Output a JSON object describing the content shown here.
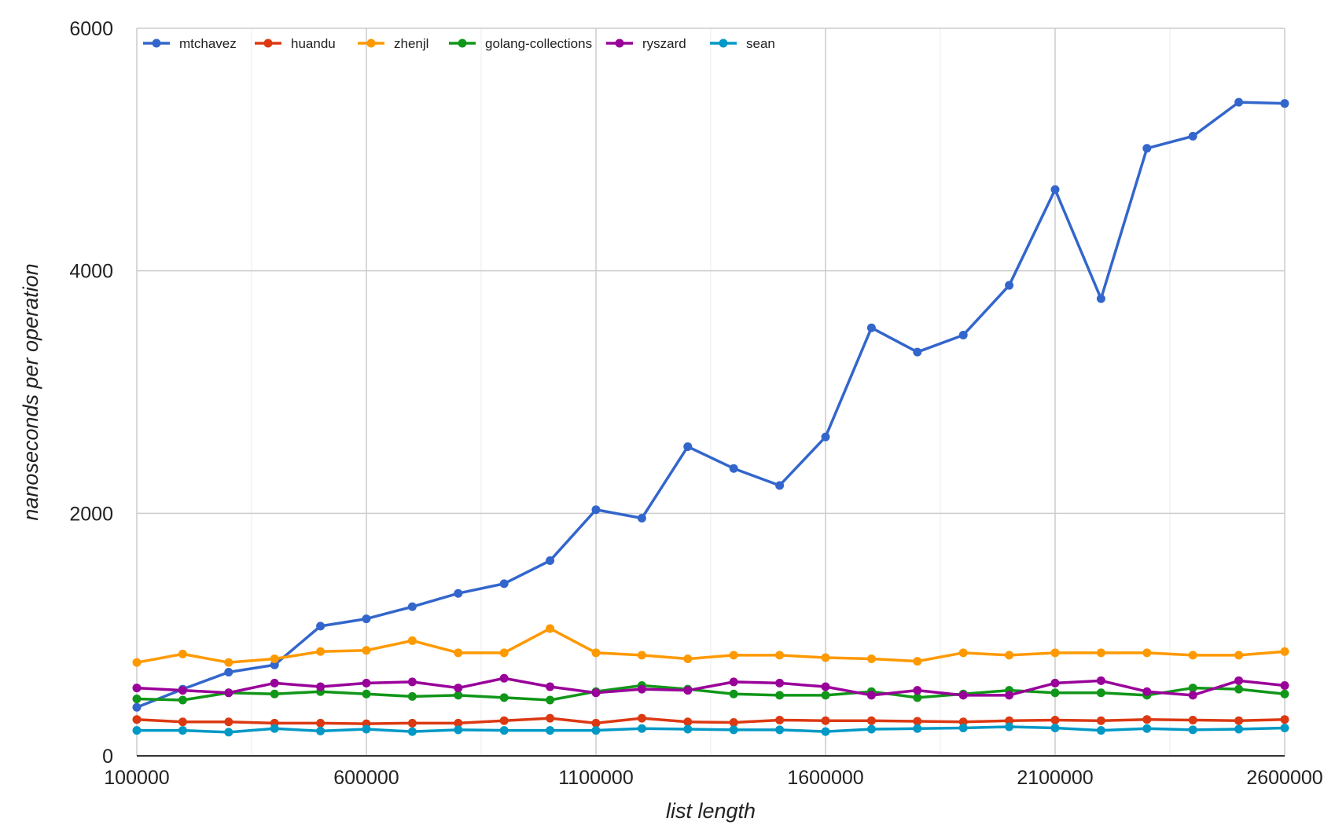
{
  "chart_data": {
    "type": "line",
    "title": "",
    "xlabel": "list length",
    "ylabel": "nanoseconds per operation",
    "xlim": [
      100000,
      2600000
    ],
    "ylim": [
      0,
      6000
    ],
    "xticks": [
      100000,
      600000,
      1100000,
      1600000,
      2100000,
      2600000
    ],
    "xtick_labels": [
      "100000",
      "600000",
      "1100000",
      "1600000",
      "2100000",
      "2600000"
    ],
    "yticks": [
      0,
      2000,
      4000,
      6000
    ],
    "ytick_labels": [
      "0",
      "2000",
      "4000",
      "6000"
    ],
    "grid": true,
    "legend_position": "top",
    "x": [
      100000,
      200000,
      300000,
      400000,
      500000,
      600000,
      700000,
      800000,
      900000,
      1000000,
      1100000,
      1200000,
      1300000,
      1400000,
      1500000,
      1600000,
      1700000,
      1800000,
      1900000,
      2000000,
      2100000,
      2200000,
      2300000,
      2400000,
      2500000,
      2600000
    ],
    "series": [
      {
        "name": "mtchavez",
        "color": "#3366cc",
        "values": [
          400,
          550,
          690,
          750,
          1070,
          1130,
          1230,
          1340,
          1420,
          1610,
          2030,
          1960,
          2550,
          2370,
          2230,
          2630,
          3530,
          3330,
          3470,
          3880,
          4670,
          3770,
          5010,
          5110,
          5390,
          5380
        ]
      },
      {
        "name": "huandu",
        "color": "#dc3912",
        "values": [
          300,
          280,
          280,
          270,
          270,
          265,
          270,
          270,
          290,
          310,
          270,
          310,
          280,
          275,
          295,
          290,
          290,
          285,
          280,
          290,
          295,
          290,
          300,
          295,
          290,
          300
        ]
      },
      {
        "name": "zhenjl",
        "color": "#ff9900",
        "values": [
          770,
          840,
          770,
          800,
          860,
          870,
          950,
          850,
          850,
          1050,
          850,
          830,
          800,
          830,
          830,
          810,
          800,
          780,
          850,
          830,
          850,
          850,
          850,
          830,
          830,
          860
        ]
      },
      {
        "name": "golang-collections",
        "color": "#109618",
        "values": [
          470,
          460,
          520,
          510,
          530,
          510,
          490,
          500,
          480,
          460,
          530,
          580,
          550,
          510,
          500,
          500,
          530,
          480,
          510,
          540,
          520,
          520,
          500,
          560,
          550,
          510
        ]
      },
      {
        "name": "ryszard",
        "color": "#990099",
        "values": [
          560,
          540,
          520,
          600,
          570,
          600,
          610,
          560,
          640,
          570,
          520,
          550,
          540,
          610,
          600,
          570,
          500,
          540,
          500,
          500,
          600,
          620,
          530,
          500,
          620,
          580
        ]
      },
      {
        "name": "sean",
        "color": "#0099c6",
        "values": [
          210,
          210,
          195,
          225,
          205,
          220,
          200,
          215,
          210,
          210,
          210,
          225,
          220,
          215,
          215,
          200,
          220,
          225,
          230,
          240,
          230,
          210,
          225,
          215,
          220,
          230
        ]
      }
    ]
  }
}
